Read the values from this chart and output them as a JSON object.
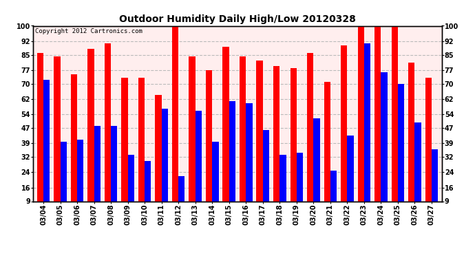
{
  "title": "Outdoor Humidity Daily High/Low 20120328",
  "copyright": "Copyright 2012 Cartronics.com",
  "dates": [
    "03/04",
    "03/05",
    "03/06",
    "03/07",
    "03/08",
    "03/09",
    "03/10",
    "03/11",
    "03/12",
    "03/13",
    "03/14",
    "03/15",
    "03/16",
    "03/17",
    "03/18",
    "03/19",
    "03/20",
    "03/21",
    "03/22",
    "03/23",
    "03/24",
    "03/25",
    "03/26",
    "03/27"
  ],
  "high": [
    86,
    84,
    75,
    88,
    91,
    73,
    73,
    64,
    100,
    84,
    77,
    89,
    84,
    82,
    79,
    78,
    86,
    71,
    90,
    100,
    100,
    100,
    81,
    73
  ],
  "low": [
    72,
    40,
    41,
    48,
    48,
    33,
    30,
    57,
    22,
    56,
    40,
    61,
    60,
    46,
    33,
    34,
    52,
    25,
    43,
    91,
    76,
    70,
    50,
    36
  ],
  "high_color": "#ff0000",
  "low_color": "#0000ff",
  "bg_color": "#ffffff",
  "plot_bg_color": "#ffeeee",
  "grid_color": "#bbbbbb",
  "yticks": [
    9,
    16,
    24,
    32,
    39,
    47,
    54,
    62,
    70,
    77,
    85,
    92,
    100
  ],
  "ymin": 9,
  "ymax": 100,
  "bar_width": 0.38,
  "title_fontsize": 10,
  "tick_fontsize": 7,
  "copyright_fontsize": 6.5
}
